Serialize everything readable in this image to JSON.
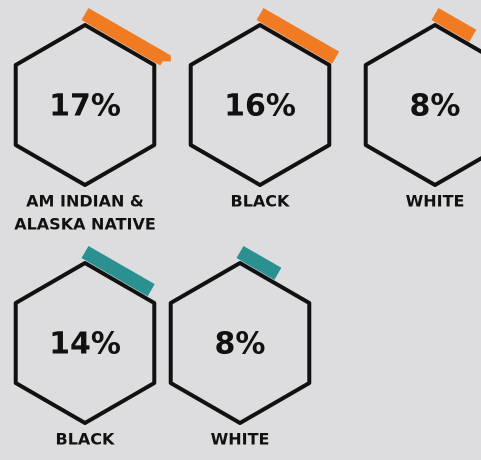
{
  "rows": [
    {
      "color": "#f07b22",
      "items": [
        {
          "value": 17,
          "value_label": "17%",
          "label": [
            "AM INDIAN &",
            "ALASKA NATIVE"
          ]
        },
        {
          "value": 16,
          "value_label": "16%",
          "label": [
            "BLACK"
          ]
        },
        {
          "value": 8,
          "value_label": "8%",
          "label": [
            "WHITE"
          ]
        }
      ]
    },
    {
      "color": "#2a9090",
      "items": [
        {
          "value": 14,
          "value_label": "14%",
          "label": [
            "BLACK"
          ]
        },
        {
          "value": 8,
          "value_label": "8%",
          "label": [
            "WHITE"
          ]
        }
      ]
    }
  ]
}
